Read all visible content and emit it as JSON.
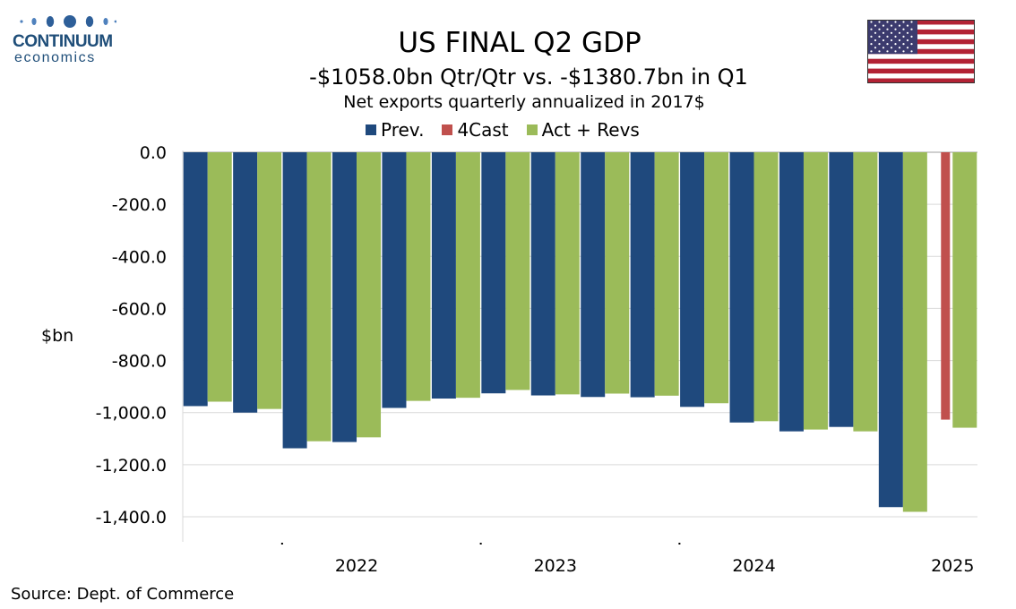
{
  "logo": {
    "line1": "CONTINUUM",
    "line2": "economics"
  },
  "flag": {
    "name": "us-flag-icon"
  },
  "chart_data": {
    "type": "bar",
    "title": "US FINAL Q2  GDP",
    "subtitle": "-$1058.0bn Qtr/Qtr vs. -$1380.7bn in Q1",
    "subtitle2": "Net exports quarterly annualized in 2017$",
    "ylabel": "$bn",
    "ylim": [
      -1500,
      0
    ],
    "yticks": [
      0,
      -200,
      -400,
      -600,
      -800,
      -1000,
      -1200,
      -1400
    ],
    "ytick_labels": [
      "0.0",
      "-200.0",
      "-400.0",
      "-600.0",
      "-800.0",
      "-1,000.0",
      "-1,200.0",
      "-1,400.0"
    ],
    "year_labels": [
      {
        "label": "2022",
        "index": 3.5
      },
      {
        "label": "2023",
        "index": 7.5
      },
      {
        "label": "2024",
        "index": 11.5
      },
      {
        "label": "2025",
        "index": 15.5
      }
    ],
    "grid": true,
    "legend_position": "top",
    "colors": {
      "prev": "#1f497d",
      "forecast": "#c0504d",
      "actual": "#9bbb59"
    },
    "series": [
      {
        "name": "Prev.",
        "key": "prev",
        "values": [
          -975,
          -1000,
          -1137,
          -1113,
          -982,
          -946,
          -926,
          -934,
          -940,
          -941,
          -978,
          -1038,
          -1072,
          -1055,
          -1363,
          null
        ]
      },
      {
        "name": "4Cast",
        "key": "forecast",
        "values": [
          null,
          null,
          null,
          null,
          null,
          null,
          null,
          null,
          null,
          null,
          null,
          null,
          null,
          null,
          null,
          -1027
        ]
      },
      {
        "name": "Act + Revs",
        "key": "actual",
        "values": [
          -958,
          -986,
          -1110,
          -1095,
          -955,
          -943,
          -913,
          -930,
          -927,
          -935,
          -964,
          -1033,
          -1065,
          -1072,
          -1381,
          -1058
        ]
      }
    ]
  },
  "source": "Source: Dept. of Commerce"
}
